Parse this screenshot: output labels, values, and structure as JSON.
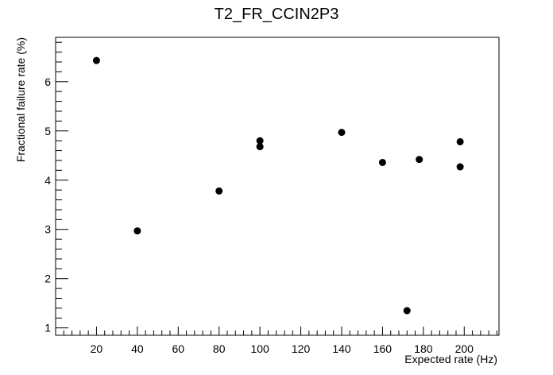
{
  "chart_data": {
    "type": "scatter",
    "title": "T2_FR_CCIN2P3",
    "xlabel": "Expected rate (Hz)",
    "ylabel": "Fractional failure rate (%)",
    "xlim": [
      0,
      217
    ],
    "ylim": [
      0.85,
      6.9
    ],
    "xticks": [
      20,
      40,
      60,
      80,
      100,
      120,
      140,
      160,
      180,
      200
    ],
    "yticks": [
      1,
      2,
      3,
      4,
      5,
      6
    ],
    "grid": false,
    "marker_color": "#000000",
    "points": [
      {
        "x": 20,
        "y": 6.43
      },
      {
        "x": 40,
        "y": 2.97
      },
      {
        "x": 80,
        "y": 3.78
      },
      {
        "x": 100,
        "y": 4.8
      },
      {
        "x": 100,
        "y": 4.68
      },
      {
        "x": 140,
        "y": 4.97
      },
      {
        "x": 160,
        "y": 4.36
      },
      {
        "x": 172,
        "y": 1.35
      },
      {
        "x": 178,
        "y": 4.42
      },
      {
        "x": 198,
        "y": 4.78
      },
      {
        "x": 198,
        "y": 4.27
      }
    ]
  }
}
